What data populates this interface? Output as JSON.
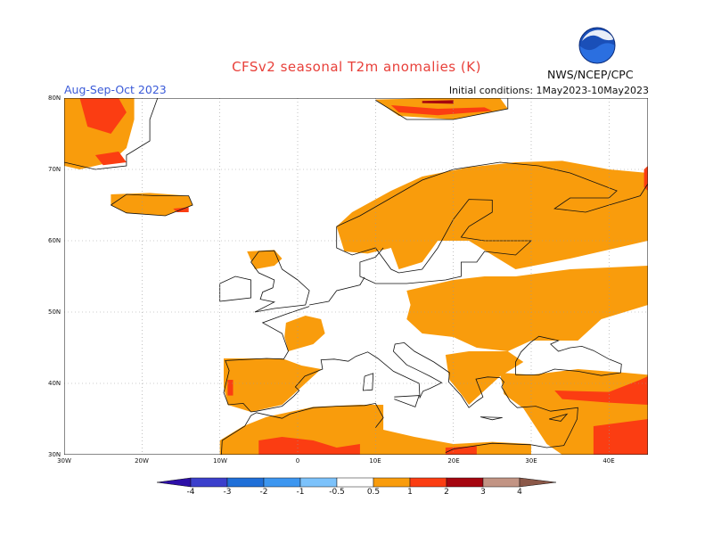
{
  "header": {
    "title": "CFSv2 seasonal T2m anomalies (K)",
    "period": "Aug-Sep-Oct 2023",
    "initial_conditions": "Initial conditions: 1May2023-10May2023",
    "agency": "NWS/NCEP/CPC",
    "logo_text": "NOAA"
  },
  "axes": {
    "lat_labels": [
      "80N",
      "70N",
      "60N",
      "50N",
      "40N",
      "30N"
    ],
    "lon_labels": [
      "30W",
      "20W",
      "10W",
      "0",
      "10E",
      "20E",
      "30E",
      "40E"
    ],
    "lon_range": [
      -30,
      45
    ],
    "lat_range": [
      30,
      80
    ]
  },
  "colorbar": {
    "levels": [
      "-4",
      "-3",
      "-2",
      "-1",
      "-0.5",
      "0.5",
      "1",
      "2",
      "3",
      "4"
    ],
    "colors": [
      "#2d0fa8",
      "#3b3fcc",
      "#1f6fd8",
      "#3c96f0",
      "#7cc2fb",
      "#ffffff",
      "#f99c0c",
      "#fb3d12",
      "#a5050f",
      "#c29484",
      "#8b5848"
    ]
  },
  "legend_colors": {
    "warm_0_5_1": "#f99c0c",
    "warm_1_2": "#fb3d12",
    "warm_2_3": "#a5050f"
  }
}
